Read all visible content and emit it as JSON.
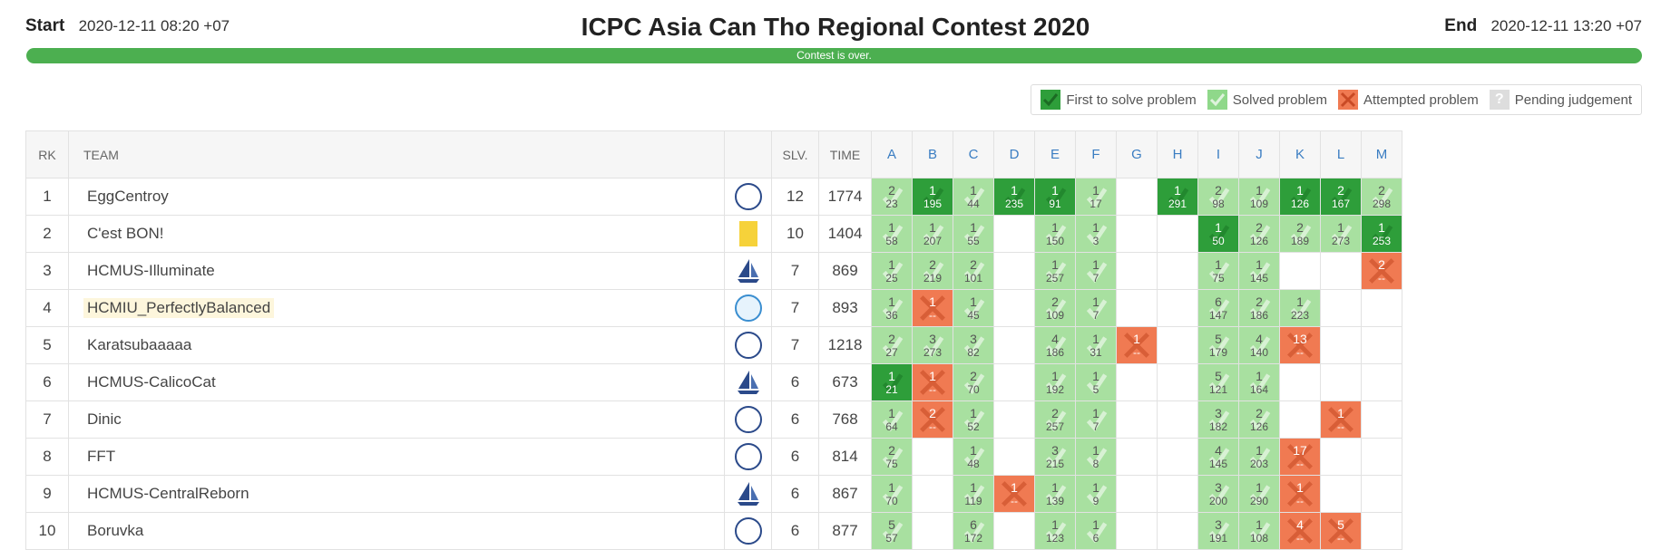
{
  "header": {
    "start_label": "Start",
    "start_value": "2020-12-11 08:20 +07",
    "title": "ICPC Asia Can Tho Regional Contest 2020",
    "end_label": "End",
    "end_value": "2020-12-11 13:20 +07",
    "progress_text": "Contest is over.",
    "progress": 1.0
  },
  "legend": {
    "first": "First to solve problem",
    "solved": "Solved problem",
    "attempted": "Attempted problem",
    "pending": "Pending judgement",
    "pending_glyph": "?"
  },
  "columns": {
    "rank": "RK",
    "team": "TEAM",
    "solved": "SLV.",
    "time": "TIME",
    "problems": [
      "A",
      "B",
      "C",
      "D",
      "E",
      "F",
      "G",
      "H",
      "I",
      "J",
      "K",
      "L",
      "M"
    ]
  },
  "colors": {
    "first": "#2e9e3a",
    "solved": "#a8e0a0",
    "attempted": "#f07a52",
    "accent": "#3a7dc2"
  },
  "rows": [
    {
      "rank": "1",
      "team": "EggCentroy",
      "logo": "circle-e",
      "slv": "12",
      "time": "1774",
      "highlight": false,
      "cells": [
        [
          "s",
          "2",
          "23"
        ],
        [
          "f",
          "1",
          "195"
        ],
        [
          "s",
          "1",
          "44"
        ],
        [
          "f",
          "1",
          "235"
        ],
        [
          "f",
          "1",
          "91"
        ],
        [
          "s",
          "1",
          "17"
        ],
        null,
        [
          "f",
          "1",
          "291"
        ],
        [
          "s",
          "2",
          "98"
        ],
        [
          "s",
          "1",
          "109"
        ],
        [
          "f",
          "1",
          "126"
        ],
        [
          "f",
          "2",
          "167"
        ],
        [
          "s",
          "2",
          "298"
        ]
      ]
    },
    {
      "rank": "2",
      "team": "C'est BON!",
      "logo": "flag",
      "slv": "10",
      "time": "1404",
      "highlight": false,
      "cells": [
        [
          "s",
          "1",
          "58"
        ],
        [
          "s",
          "1",
          "207"
        ],
        [
          "s",
          "1",
          "55"
        ],
        null,
        [
          "s",
          "1",
          "150"
        ],
        [
          "s",
          "1",
          "3"
        ],
        null,
        null,
        [
          "f",
          "1",
          "50"
        ],
        [
          "s",
          "2",
          "126"
        ],
        [
          "s",
          "2",
          "189"
        ],
        [
          "s",
          "1",
          "273"
        ],
        [
          "f",
          "1",
          "253"
        ]
      ]
    },
    {
      "rank": "3",
      "team": "HCMUS-Illuminate",
      "logo": "sail",
      "slv": "7",
      "time": "869",
      "highlight": false,
      "cells": [
        [
          "s",
          "1",
          "25"
        ],
        [
          "s",
          "2",
          "219"
        ],
        [
          "s",
          "2",
          "101"
        ],
        null,
        [
          "s",
          "1",
          "257"
        ],
        [
          "s",
          "1",
          "7"
        ],
        null,
        null,
        [
          "s",
          "1",
          "75"
        ],
        [
          "s",
          "1",
          "145"
        ],
        null,
        null,
        [
          "x",
          "2",
          "--"
        ]
      ]
    },
    {
      "rank": "4",
      "team": "HCMIU_PerfectlyBalanced",
      "logo": "uni",
      "slv": "7",
      "time": "893",
      "highlight": true,
      "cells": [
        [
          "s",
          "1",
          "36"
        ],
        [
          "x",
          "1",
          "--"
        ],
        [
          "s",
          "1",
          "45"
        ],
        null,
        [
          "s",
          "2",
          "109"
        ],
        [
          "s",
          "1",
          "7"
        ],
        null,
        null,
        [
          "s",
          "6",
          "147"
        ],
        [
          "s",
          "2",
          "186"
        ],
        [
          "s",
          "1",
          "223"
        ],
        null,
        null
      ]
    },
    {
      "rank": "5",
      "team": "Karatsubaaaaa",
      "logo": "circle-e",
      "slv": "7",
      "time": "1218",
      "highlight": false,
      "cells": [
        [
          "s",
          "2",
          "27"
        ],
        [
          "s",
          "3",
          "273"
        ],
        [
          "s",
          "3",
          "82"
        ],
        null,
        [
          "s",
          "4",
          "186"
        ],
        [
          "s",
          "1",
          "31"
        ],
        [
          "x",
          "1",
          "--"
        ],
        null,
        [
          "s",
          "5",
          "179"
        ],
        [
          "s",
          "4",
          "140"
        ],
        [
          "x",
          "13",
          "--"
        ],
        null,
        null
      ]
    },
    {
      "rank": "6",
      "team": "HCMUS-CalicoCat",
      "logo": "sail",
      "slv": "6",
      "time": "673",
      "highlight": false,
      "cells": [
        [
          "f",
          "1",
          "21"
        ],
        [
          "x",
          "1",
          "--"
        ],
        [
          "s",
          "2",
          "70"
        ],
        null,
        [
          "s",
          "1",
          "192"
        ],
        [
          "s",
          "1",
          "5"
        ],
        null,
        null,
        [
          "s",
          "5",
          "121"
        ],
        [
          "s",
          "1",
          "164"
        ],
        null,
        null,
        null
      ]
    },
    {
      "rank": "7",
      "team": "Dinic",
      "logo": "circle-e",
      "slv": "6",
      "time": "768",
      "highlight": false,
      "cells": [
        [
          "s",
          "1",
          "64"
        ],
        [
          "x",
          "2",
          "--"
        ],
        [
          "s",
          "1",
          "52"
        ],
        null,
        [
          "s",
          "2",
          "257"
        ],
        [
          "s",
          "1",
          "7"
        ],
        null,
        null,
        [
          "s",
          "3",
          "182"
        ],
        [
          "s",
          "2",
          "126"
        ],
        null,
        [
          "x",
          "1",
          "--"
        ],
        null
      ]
    },
    {
      "rank": "8",
      "team": "FFT",
      "logo": "circle-e",
      "slv": "6",
      "time": "814",
      "highlight": false,
      "cells": [
        [
          "s",
          "2",
          "75"
        ],
        null,
        [
          "s",
          "1",
          "48"
        ],
        null,
        [
          "s",
          "3",
          "215"
        ],
        [
          "s",
          "1",
          "8"
        ],
        null,
        null,
        [
          "s",
          "4",
          "145"
        ],
        [
          "s",
          "1",
          "203"
        ],
        [
          "x",
          "17",
          "--"
        ],
        null,
        null
      ]
    },
    {
      "rank": "9",
      "team": "HCMUS-CentralReborn",
      "logo": "sail",
      "slv": "6",
      "time": "867",
      "highlight": false,
      "cells": [
        [
          "s",
          "1",
          "70"
        ],
        null,
        [
          "s",
          "1",
          "119"
        ],
        [
          "x",
          "1",
          "--"
        ],
        [
          "s",
          "1",
          "139"
        ],
        [
          "s",
          "1",
          "9"
        ],
        null,
        null,
        [
          "s",
          "3",
          "200"
        ],
        [
          "s",
          "1",
          "290"
        ],
        [
          "x",
          "1",
          "--"
        ],
        null,
        null
      ]
    },
    {
      "rank": "10",
      "team": "Boruvka",
      "logo": "circle-e",
      "slv": "6",
      "time": "877",
      "highlight": false,
      "cells": [
        [
          "s",
          "5",
          "57"
        ],
        null,
        [
          "s",
          "6",
          "172"
        ],
        null,
        [
          "s",
          "1",
          "123"
        ],
        [
          "s",
          "1",
          "6"
        ],
        null,
        null,
        [
          "s",
          "3",
          "191"
        ],
        [
          "s",
          "1",
          "108"
        ],
        [
          "x",
          "4",
          "--"
        ],
        [
          "x",
          "5",
          "--"
        ],
        null
      ]
    }
  ]
}
